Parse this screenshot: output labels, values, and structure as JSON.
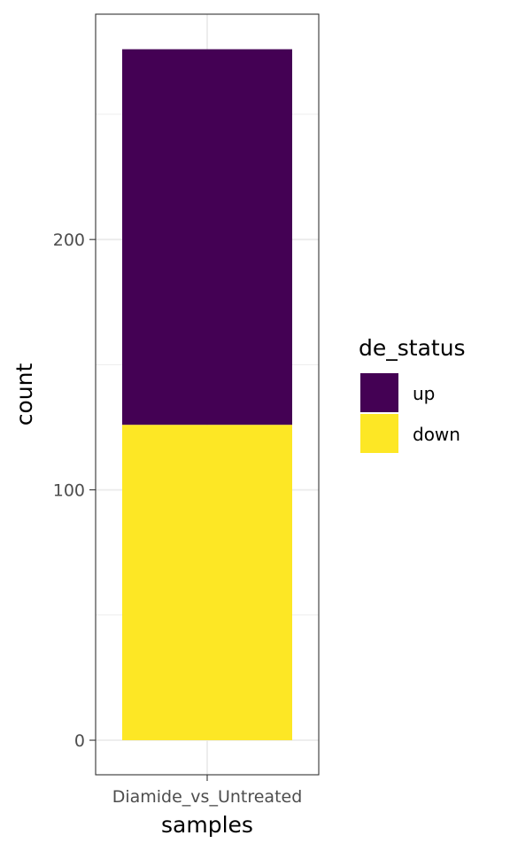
{
  "chart_data": {
    "type": "bar",
    "stacked": true,
    "categories": [
      "Diamide_vs_Untreated"
    ],
    "series": [
      {
        "name": "up",
        "values": [
          150
        ],
        "color": "#440154"
      },
      {
        "name": "down",
        "values": [
          126
        ],
        "color": "#FDE725"
      }
    ],
    "xlabel": "samples",
    "ylabel": "count",
    "yticks": [
      0,
      100,
      200
    ],
    "ylim": [
      -13.8,
      290
    ],
    "legend": {
      "title": "de_status",
      "placement": "right",
      "entries": [
        "up",
        "down"
      ]
    },
    "grid": true,
    "theme": "bw"
  }
}
